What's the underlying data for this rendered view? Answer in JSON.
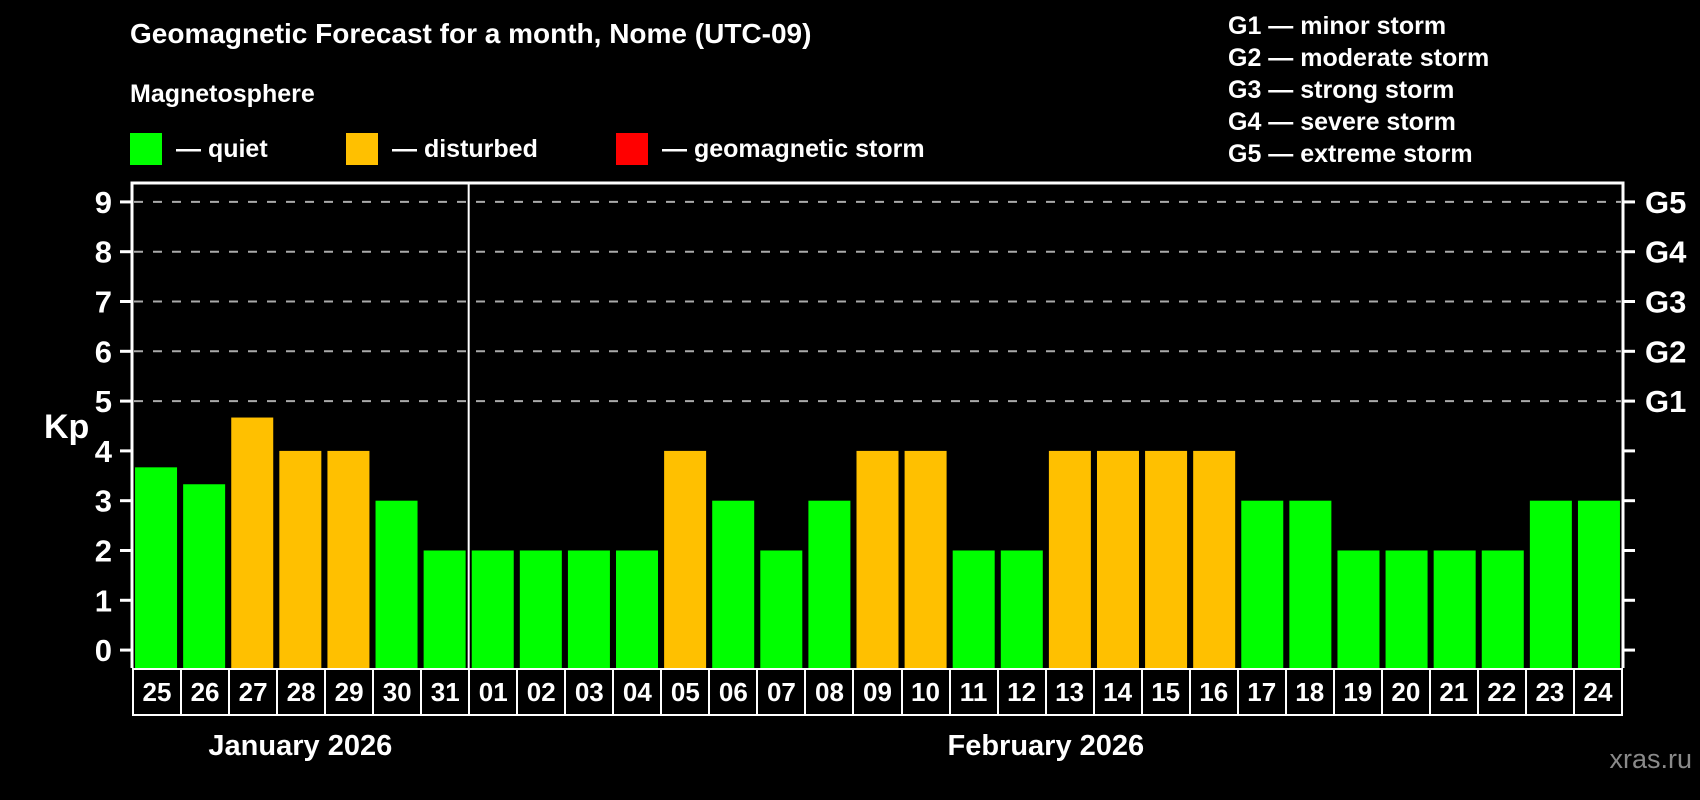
{
  "page": {
    "background": "#000000"
  },
  "header": {
    "title": "Geomagnetic Forecast for a month, Nome (UTC-09)",
    "subtitle": "Magnetosphere",
    "legend": [
      {
        "name": "quiet",
        "swatch_color": "#00ff00",
        "label": "— quiet"
      },
      {
        "name": "disturbed",
        "swatch_color": "#ffc000",
        "label": "— disturbed"
      },
      {
        "name": "storm",
        "swatch_color": "#ff0000",
        "label": "— geomagnetic storm"
      }
    ],
    "storm_scale": [
      {
        "label": "G1 — minor storm"
      },
      {
        "label": "G2 — moderate storm"
      },
      {
        "label": "G3 — strong storm"
      },
      {
        "label": "G4 — severe storm"
      },
      {
        "label": "G5 — extreme storm"
      }
    ]
  },
  "watermark": "xras.ru",
  "chart_data": {
    "type": "bar",
    "title": "Geomagnetic Forecast for a month, Nome (UTC-09)",
    "xlabel": "",
    "ylabel": "Kp",
    "ylim": [
      -0.36,
      9.38
    ],
    "yticks": [
      0,
      1,
      2,
      3,
      4,
      5,
      6,
      7,
      8,
      9
    ],
    "gridlines_at_kp": [
      5,
      6,
      7,
      8,
      9
    ],
    "grid": "dashed",
    "legend_position": "top-left",
    "right_axis_labels": [
      {
        "kp": 5,
        "label": "G1"
      },
      {
        "kp": 6,
        "label": "G2"
      },
      {
        "kp": 7,
        "label": "G3"
      },
      {
        "kp": 8,
        "label": "G4"
      },
      {
        "kp": 9,
        "label": "G5"
      }
    ],
    "months": [
      {
        "label": "January 2026",
        "first_day_index": 0,
        "num_days": 7
      },
      {
        "label": "February 2026",
        "first_day_index": 7,
        "num_days": 24
      }
    ],
    "categories": [
      "25",
      "26",
      "27",
      "28",
      "29",
      "30",
      "31",
      "01",
      "02",
      "03",
      "04",
      "05",
      "06",
      "07",
      "08",
      "09",
      "10",
      "11",
      "12",
      "13",
      "14",
      "15",
      "16",
      "17",
      "18",
      "19",
      "20",
      "21",
      "22",
      "23",
      "24"
    ],
    "series": [
      {
        "name": "Kp forecast",
        "values": [
          3.67,
          3.33,
          4.67,
          4,
          4,
          3,
          2,
          2,
          2,
          2,
          2,
          4,
          3,
          2,
          3,
          4,
          4,
          2,
          2,
          4,
          4,
          4,
          4,
          3,
          3,
          2,
          2,
          2,
          2,
          3,
          3
        ],
        "statuses": [
          "quiet",
          "quiet",
          "disturbed",
          "disturbed",
          "disturbed",
          "quiet",
          "quiet",
          "quiet",
          "quiet",
          "quiet",
          "quiet",
          "disturbed",
          "quiet",
          "quiet",
          "quiet",
          "disturbed",
          "disturbed",
          "quiet",
          "quiet",
          "disturbed",
          "disturbed",
          "disturbed",
          "disturbed",
          "quiet",
          "quiet",
          "quiet",
          "quiet",
          "quiet",
          "quiet",
          "quiet",
          "quiet"
        ]
      }
    ],
    "status_colors": {
      "quiet": "#00ff00",
      "disturbed": "#ffc000",
      "storm": "#ff0000"
    }
  }
}
